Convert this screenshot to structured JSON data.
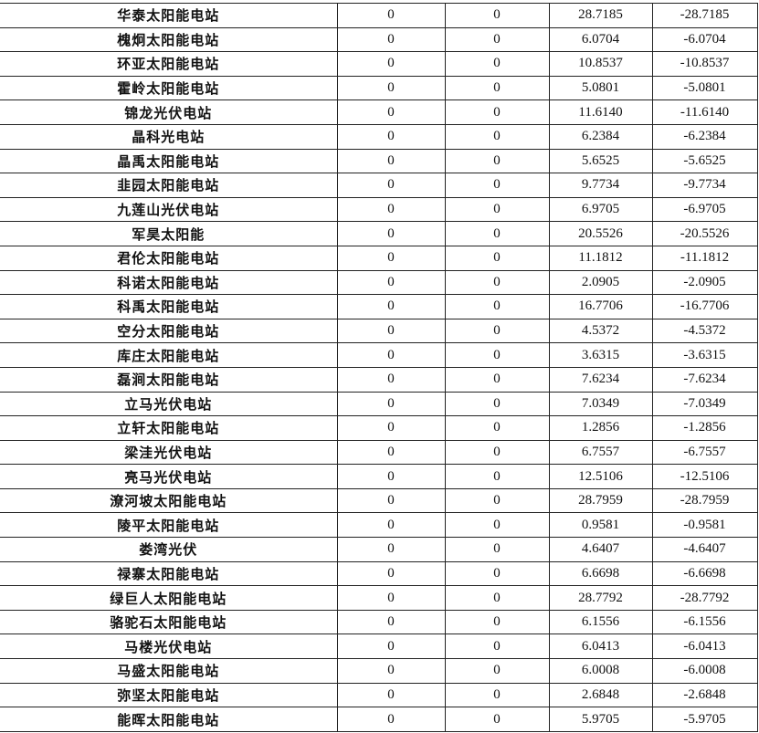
{
  "rows": [
    [
      "华泰太阳能电站",
      "0",
      "0",
      "28.7185",
      "-28.7185"
    ],
    [
      "槐炯太阳能电站",
      "0",
      "0",
      "6.0704",
      "-6.0704"
    ],
    [
      "环亚太阳能电站",
      "0",
      "0",
      "10.8537",
      "-10.8537"
    ],
    [
      "霍岭太阳能电站",
      "0",
      "0",
      "5.0801",
      "-5.0801"
    ],
    [
      "锦龙光伏电站",
      "0",
      "0",
      "11.6140",
      "-11.6140"
    ],
    [
      "晶科光电站",
      "0",
      "0",
      "6.2384",
      "-6.2384"
    ],
    [
      "晶禹太阳能电站",
      "0",
      "0",
      "5.6525",
      "-5.6525"
    ],
    [
      "韭园太阳能电站",
      "0",
      "0",
      "9.7734",
      "-9.7734"
    ],
    [
      "九莲山光伏电站",
      "0",
      "0",
      "6.9705",
      "-6.9705"
    ],
    [
      "军昊太阳能",
      "0",
      "0",
      "20.5526",
      "-20.5526"
    ],
    [
      "君伦太阳能电站",
      "0",
      "0",
      "11.1812",
      "-11.1812"
    ],
    [
      "科诺太阳能电站",
      "0",
      "0",
      "2.0905",
      "-2.0905"
    ],
    [
      "科禹太阳能电站",
      "0",
      "0",
      "16.7706",
      "-16.7706"
    ],
    [
      "空分太阳能电站",
      "0",
      "0",
      "4.5372",
      "-4.5372"
    ],
    [
      "库庄太阳能电站",
      "0",
      "0",
      "3.6315",
      "-3.6315"
    ],
    [
      "磊涧太阳能电站",
      "0",
      "0",
      "7.6234",
      "-7.6234"
    ],
    [
      "立马光伏电站",
      "0",
      "0",
      "7.0349",
      "-7.0349"
    ],
    [
      "立轩太阳能电站",
      "0",
      "0",
      "1.2856",
      "-1.2856"
    ],
    [
      "梁洼光伏电站",
      "0",
      "0",
      "6.7557",
      "-6.7557"
    ],
    [
      "亮马光伏电站",
      "0",
      "0",
      "12.5106",
      "-12.5106"
    ],
    [
      "潦河坡太阳能电站",
      "0",
      "0",
      "28.7959",
      "-28.7959"
    ],
    [
      "陵平太阳能电站",
      "0",
      "0",
      "0.9581",
      "-0.9581"
    ],
    [
      "娄湾光伏",
      "0",
      "0",
      "4.6407",
      "-4.6407"
    ],
    [
      "禄寨太阳能电站",
      "0",
      "0",
      "6.6698",
      "-6.6698"
    ],
    [
      "绿巨人太阳能电站",
      "0",
      "0",
      "28.7792",
      "-28.7792"
    ],
    [
      "骆驼石太阳能电站",
      "0",
      "0",
      "6.1556",
      "-6.1556"
    ],
    [
      "马楼光伏电站",
      "0",
      "0",
      "6.0413",
      "-6.0413"
    ],
    [
      "马盛太阳能电站",
      "0",
      "0",
      "6.0008",
      "-6.0008"
    ],
    [
      "弥坚太阳能电站",
      "0",
      "0",
      "2.6848",
      "-2.6848"
    ],
    [
      "能晖太阳能电站",
      "0",
      "0",
      "5.9705",
      "-5.9705"
    ]
  ]
}
